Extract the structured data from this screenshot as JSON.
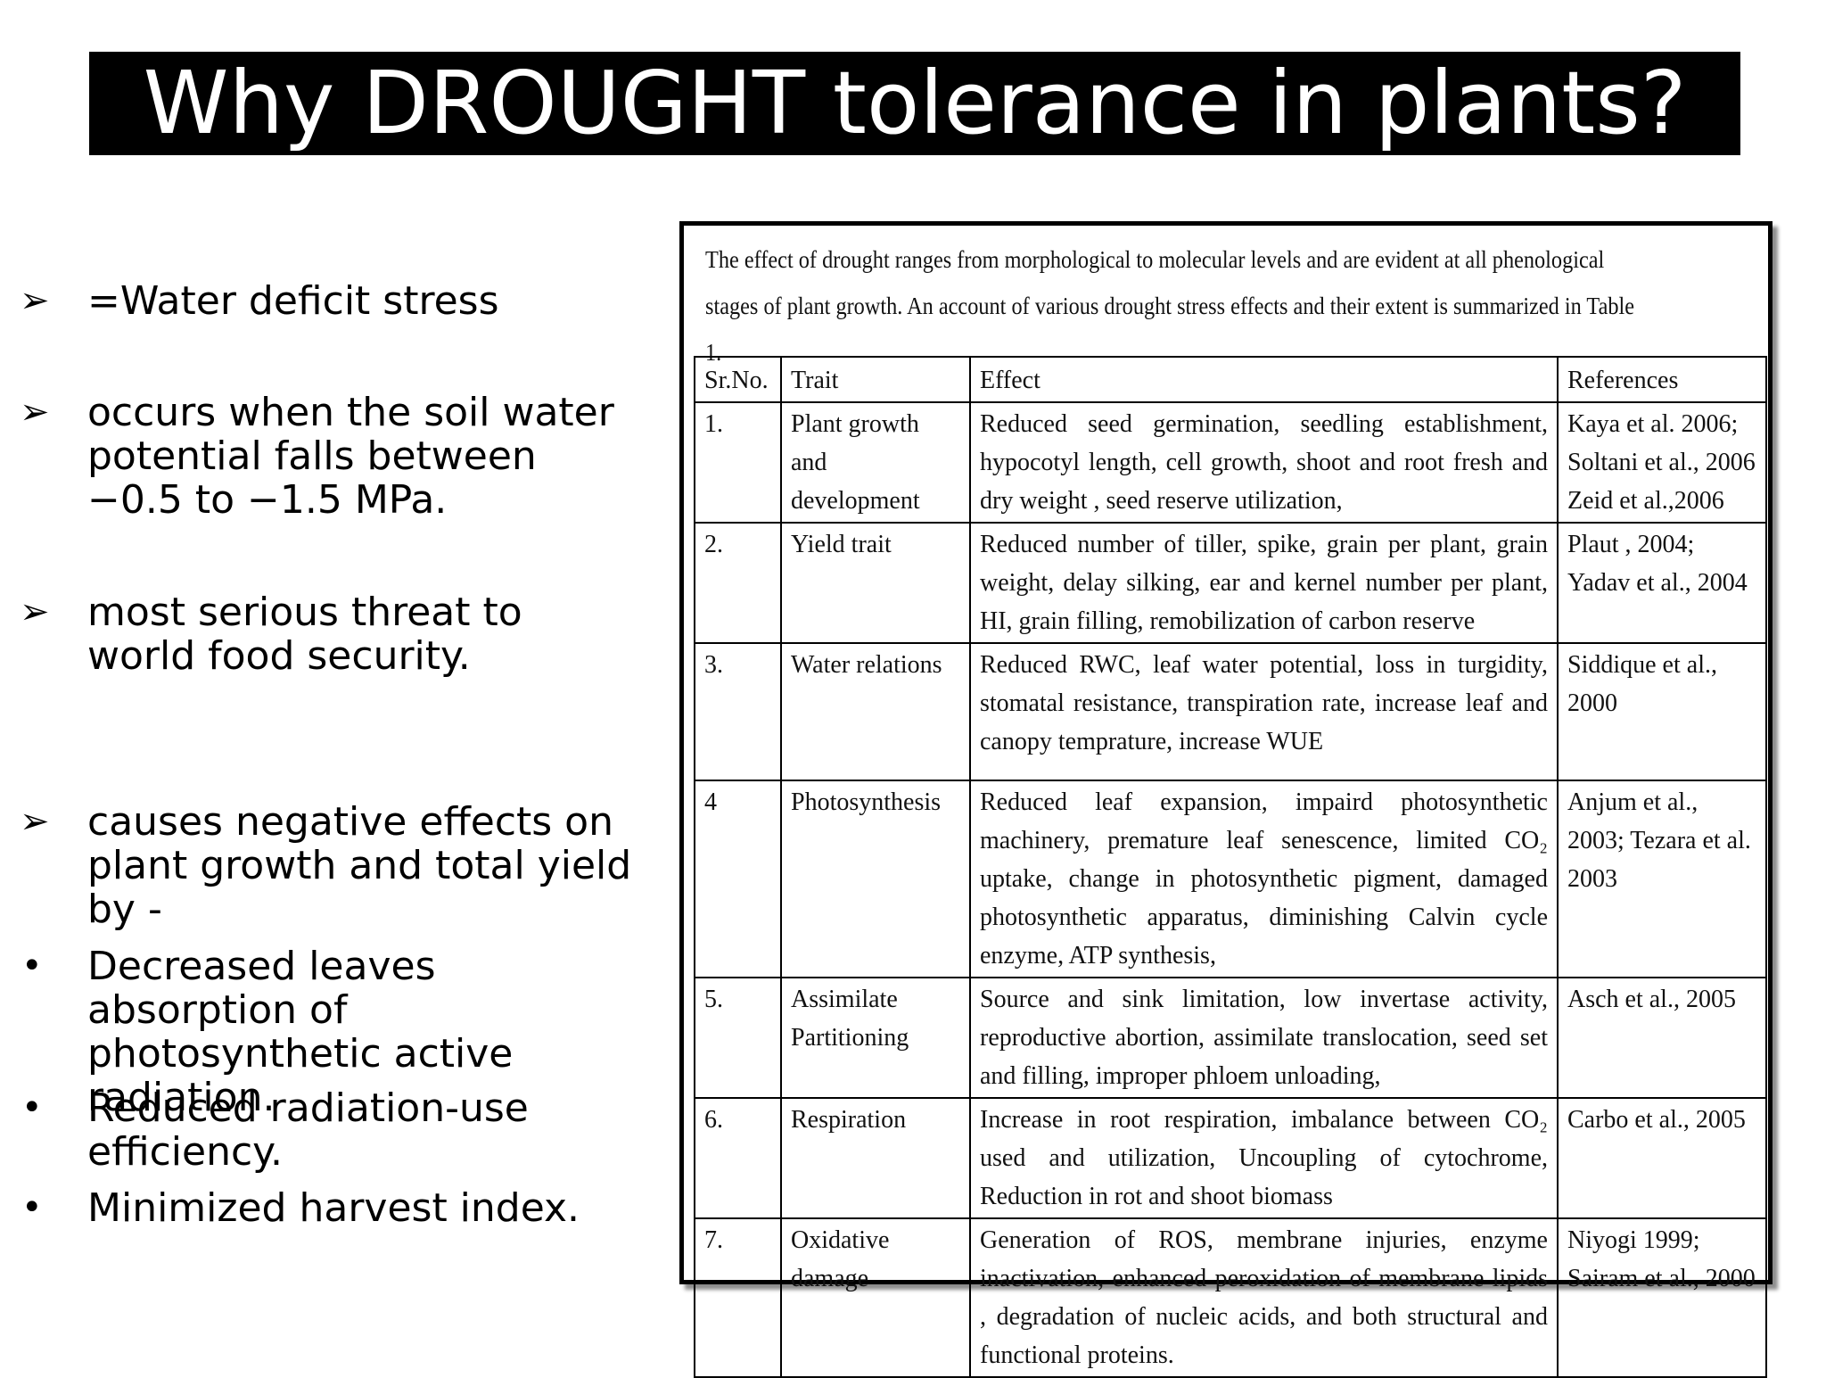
{
  "title": "Why DROUGHT tolerance in plants?",
  "bullets": [
    {
      "marker": "➢",
      "text": " =Water deficit stress"
    },
    {
      "marker": "➢",
      "text": "occurs when the soil water potential falls between −0.5 to −1.5 MPa."
    },
    {
      "marker": "➢",
      "text": " most serious threat to world food security."
    },
    {
      "marker": "➢",
      "text": " causes  negative effects on plant growth and total yield by -"
    },
    {
      "marker": "•",
      "text": "Decreased leaves absorption of photosynthetic active radiation."
    },
    {
      "marker": "•",
      "text": "Reduced radiation-use efficiency."
    },
    {
      "marker": "•",
      "text": "Minimized harvest index."
    }
  ],
  "table_intro": "The effect of drought ranges from morphological to molecular levels and are evident at all phenological stages of plant growth. An account of various drought stress effects and their extent is summarized in Table 1.",
  "table": {
    "headers": [
      "Sr.No.",
      "Trait",
      "Effect",
      "References"
    ],
    "rows": [
      {
        "no": "1.",
        "trait": "Plant growth and development",
        "effect": "Reduced seed germination, seedling establishment, hypocotyl length, cell growth, shoot and root fresh and dry weight , seed reserve utilization,",
        "refs": "Kaya et al. 2006; Soltani et al., 2006 Zeid et al.,2006"
      },
      {
        "no": "2.",
        "trait": "Yield trait",
        "effect": "Reduced number of tiller, spike, grain per plant, grain weight, delay silking, ear and kernel number per plant, HI, grain filling, remobilization of carbon reserve",
        "refs": "Plaut , 2004; Yadav et al., 2004"
      },
      {
        "no": "3.",
        "trait": "Water relations",
        "effect": "Reduced RWC, leaf water potential, loss in turgidity, stomatal resistance, transpiration rate,  increase leaf and canopy temprature, increase WUE",
        "refs": "Siddique et al., 2000"
      },
      {
        "no": "4",
        "trait": "Photosynthesis",
        "effect": "Reduced leaf expansion, impaird photosynthetic machinery, premature leaf senescence, limited CO₂ uptake, change in photosynthetic pigment, damaged photosynthetic apparatus, diminishing Calvin cycle enzyme, ATP synthesis,",
        "refs": "Anjum et al., 2003; Tezara et al. 2003"
      },
      {
        "no": "5.",
        "trait": "Assimilate Partitioning",
        "effect": "Source and sink limitation, low invertase activity, reproductive abortion, assimilate translocation, seed set and filling, improper phloem unloading,",
        "refs": "Asch et al., 2005"
      },
      {
        "no": "6.",
        "trait": "Respiration",
        "effect": "Increase in root respiration, imbalance between CO₂ used and utilization, Uncoupling of cytochrome, Reduction in rot and shoot biomass",
        "refs": "Carbo et al., 2005"
      },
      {
        "no": "7.",
        "trait": "Oxidative damage",
        "effect": "Generation of ROS, membrane injuries, enzyme inactivation, enhanced peroxidation of membrane lipids , degradation of nucleic acids, and both structural and functional proteins.",
        "refs": "Niyogi 1999; Sairam et al., 2000"
      }
    ]
  }
}
